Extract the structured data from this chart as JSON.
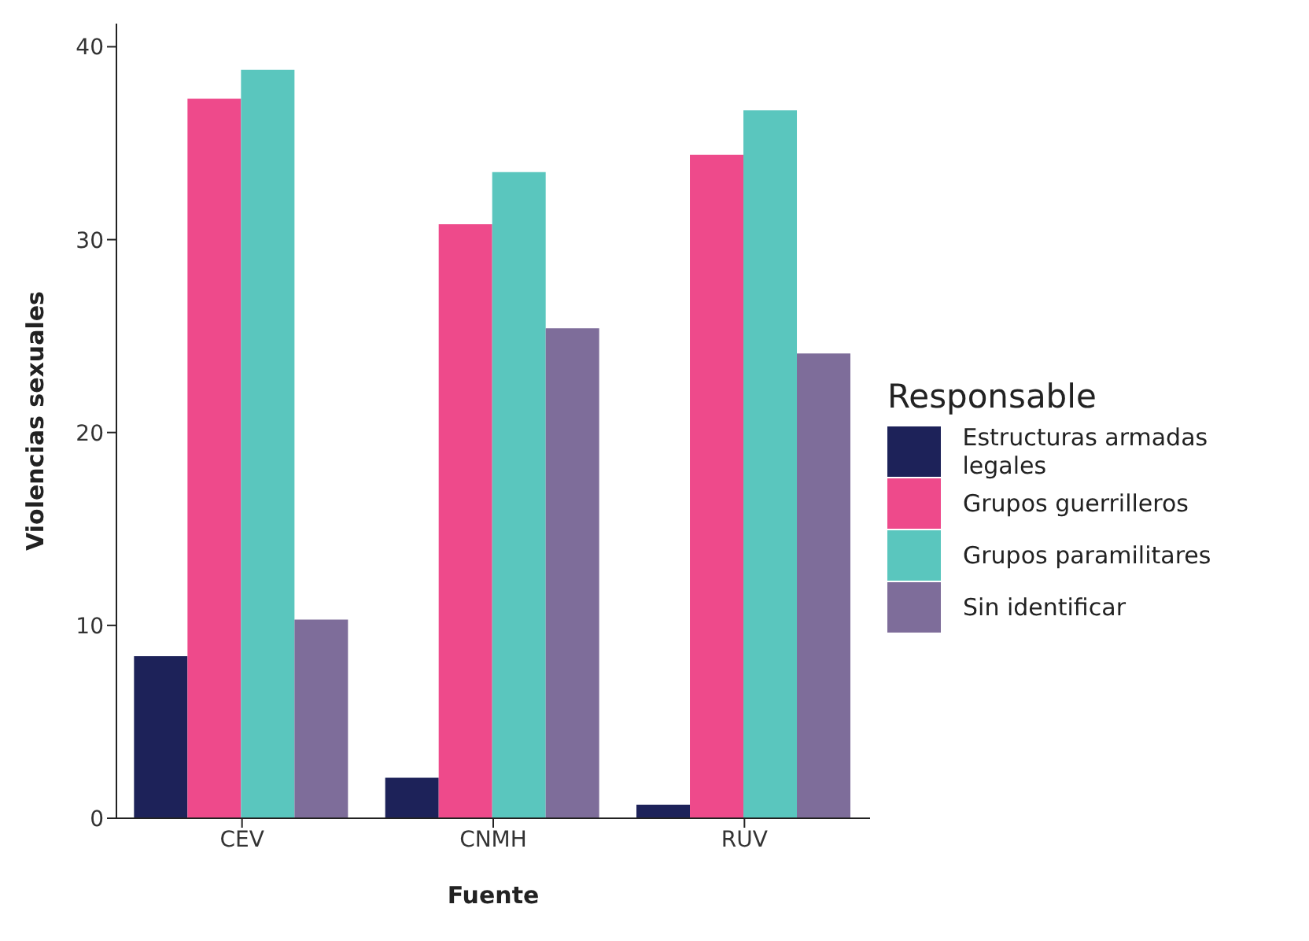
{
  "chart_data": {
    "type": "bar",
    "xlabel": "Fuente",
    "ylabel": "Violencias sexuales",
    "legend_title": "Responsable",
    "categories": [
      "CEV",
      "CNMH",
      "RUV"
    ],
    "series": [
      {
        "name": "Estructuras armadas legales",
        "color": "#1d2259",
        "values": [
          8.4,
          2.1,
          0.7
        ]
      },
      {
        "name": "Grupos guerrilleros",
        "color": "#ee4a8b",
        "values": [
          37.3,
          30.8,
          34.4
        ]
      },
      {
        "name": "Grupos paramilitares",
        "color": "#5ac6be",
        "values": [
          38.8,
          33.5,
          36.7
        ]
      },
      {
        "name": "Sin identificar",
        "color": "#7e6d9a",
        "values": [
          10.3,
          25.4,
          24.1
        ]
      }
    ],
    "ylim": [
      0,
      41.2
    ],
    "yticks": [
      0,
      10,
      20,
      30,
      40
    ],
    "grid": false,
    "legend": "right"
  }
}
